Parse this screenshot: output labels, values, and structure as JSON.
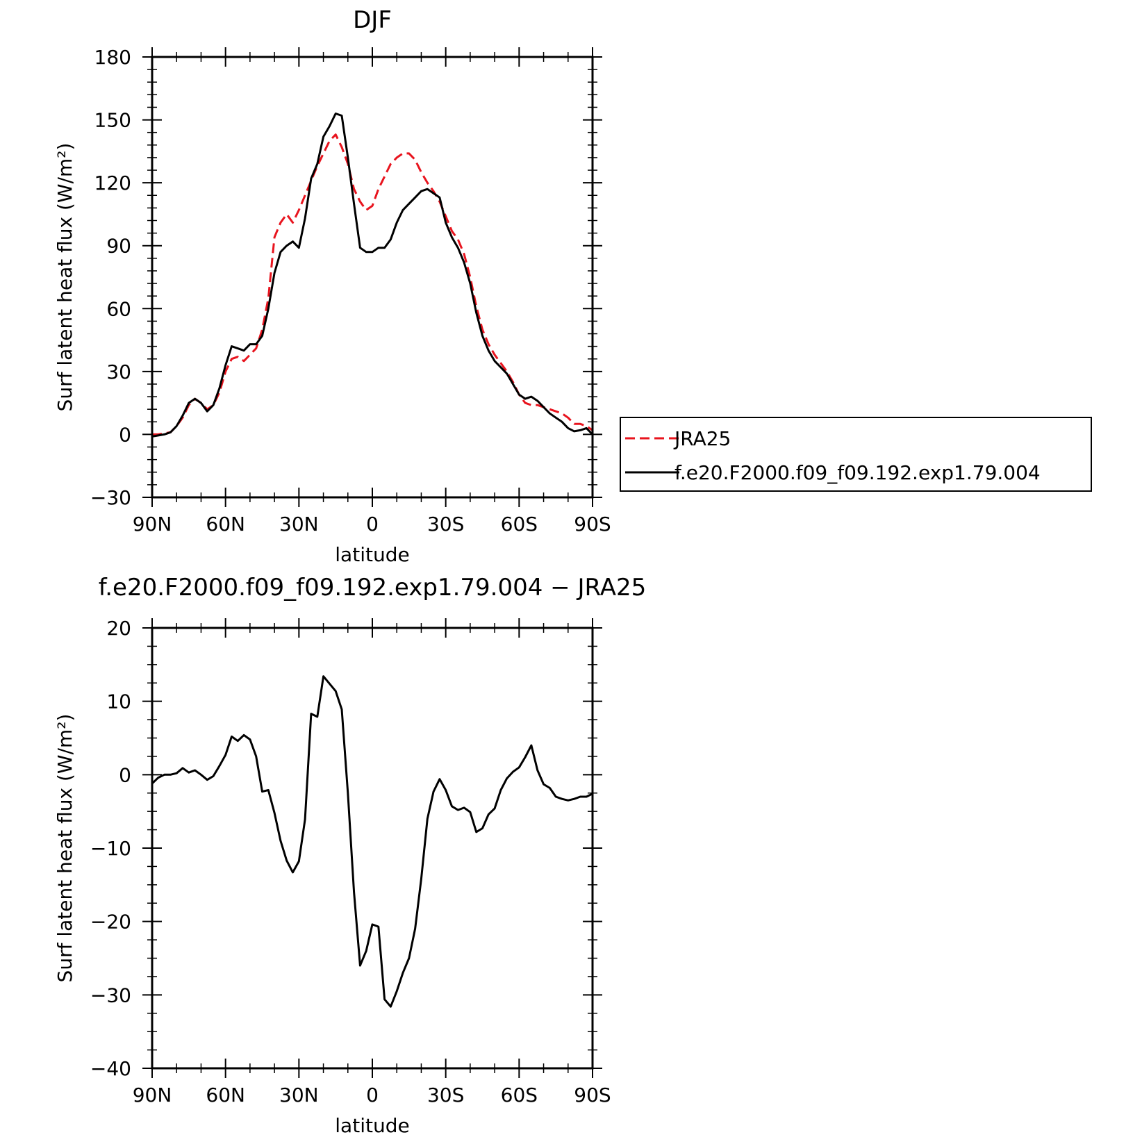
{
  "chart_data": [
    {
      "type": "line",
      "title": "DJF",
      "xlabel": "latitude",
      "ylabel": "Surf latent heat flux (W/m²)",
      "xlim": [
        90,
        -90
      ],
      "ylim": [
        -30,
        180
      ],
      "yticks": [
        -30,
        0,
        30,
        60,
        90,
        120,
        150,
        180
      ],
      "xticks": [
        90,
        60,
        30,
        0,
        -30,
        -60,
        -90
      ],
      "xtick_labels": [
        "90N",
        "60N",
        "30N",
        "0",
        "30S",
        "60S",
        "90S"
      ],
      "legend": "right",
      "series": [
        {
          "name": "JRA25",
          "color": "#e8141e",
          "style": "dashed",
          "x": [
            90,
            87.5,
            85,
            82.5,
            80,
            77.5,
            75,
            72.5,
            70,
            67.5,
            65,
            62.5,
            60,
            57.5,
            55,
            52.5,
            50,
            47.5,
            45,
            42.5,
            40,
            37.5,
            35,
            32.5,
            30,
            27.5,
            25,
            22.5,
            20,
            17.5,
            15,
            12.5,
            10,
            7.5,
            5,
            2.5,
            0,
            -2.5,
            -5,
            -7.5,
            -10,
            -12.5,
            -15,
            -17.5,
            -20,
            -22.5,
            -25,
            -27.5,
            -30,
            -32.5,
            -35,
            -37.5,
            -40,
            -42.5,
            -45,
            -47.5,
            -50,
            -52.5,
            -55,
            -57.5,
            -60,
            -62.5,
            -65,
            -67.5,
            -70,
            -72.5,
            -75,
            -77.5,
            -80,
            -82.5,
            -85,
            -87.5,
            -90
          ],
          "values": [
            0,
            0,
            0.5,
            1,
            4,
            8,
            14,
            17,
            15,
            12,
            14,
            20,
            30,
            36,
            37,
            35,
            38,
            41,
            50,
            65,
            94,
            101,
            105,
            101,
            107,
            114,
            121,
            128,
            134,
            140,
            143,
            137,
            129,
            117,
            111,
            107,
            109,
            117,
            123,
            129,
            132,
            134,
            134,
            131,
            125,
            120,
            116,
            111,
            104,
            97,
            93,
            86,
            75,
            61,
            50,
            43,
            38,
            34,
            30,
            25,
            19,
            15,
            14,
            14,
            13,
            12,
            11,
            10,
            8,
            5,
            5,
            4,
            2
          ]
        },
        {
          "name": "f.e20.F2000.f09_f09.192.exp1.79.004",
          "color": "#000000",
          "style": "solid",
          "x": [
            90,
            87.5,
            85,
            82.5,
            80,
            77.5,
            75,
            72.5,
            70,
            67.5,
            65,
            62.5,
            60,
            57.5,
            55,
            52.5,
            50,
            47.5,
            45,
            42.5,
            40,
            37.5,
            35,
            32.5,
            30,
            27.5,
            25,
            22.5,
            20,
            17.5,
            15,
            12.5,
            10,
            7.5,
            5,
            2.5,
            0,
            -2.5,
            -5,
            -7.5,
            -10,
            -12.5,
            -15,
            -17.5,
            -20,
            -22.5,
            -25,
            -27.5,
            -30,
            -32.5,
            -35,
            -37.5,
            -40,
            -42.5,
            -45,
            -47.5,
            -50,
            -52.5,
            -55,
            -57.5,
            -60,
            -62.5,
            -65,
            -67.5,
            -70,
            -72.5,
            -75,
            -77.5,
            -80,
            -82.5,
            -85,
            -87.5,
            -90
          ],
          "values": [
            -1,
            -0.5,
            0,
            1,
            4,
            9,
            15,
            17,
            15,
            11,
            14,
            22,
            33,
            42,
            41,
            40,
            43,
            43,
            47,
            60,
            77,
            87,
            90,
            92,
            89,
            103,
            122,
            129,
            142,
            147,
            153,
            152,
            132,
            110,
            89,
            87,
            87,
            89,
            89,
            93,
            101,
            107,
            110,
            113,
            116,
            117,
            115,
            113,
            101,
            94,
            89,
            82,
            72,
            58,
            47,
            40,
            35,
            32,
            29,
            24,
            19,
            17,
            18,
            16,
            13,
            10,
            8,
            6,
            3,
            1.5,
            2,
            3,
            0
          ]
        }
      ]
    },
    {
      "type": "line",
      "title": "f.e20.F2000.f09_f09.192.exp1.79.004 − JRA25",
      "xlabel": "latitude",
      "ylabel": "Surf latent heat flux (W/m²)",
      "xlim": [
        90,
        -90
      ],
      "ylim": [
        -40,
        20
      ],
      "yticks": [
        -40,
        -30,
        -20,
        -10,
        0,
        10,
        20
      ],
      "xticks": [
        90,
        60,
        30,
        0,
        -30,
        -60,
        -90
      ],
      "xtick_labels": [
        "90N",
        "60N",
        "30N",
        "0",
        "30S",
        "60S",
        "90S"
      ],
      "series": [
        {
          "color": "#000000",
          "style": "solid",
          "x": [
            90,
            87.5,
            85,
            82.5,
            80,
            77.5,
            75,
            72.5,
            70,
            67.5,
            65,
            62.5,
            60,
            57.5,
            55,
            52.5,
            50,
            47.5,
            45,
            42.5,
            40,
            37.5,
            35,
            32.5,
            30,
            27.5,
            25,
            22.5,
            20,
            17.5,
            15,
            12.5,
            10,
            7.5,
            5,
            2.5,
            0,
            -2.5,
            -5,
            -7.5,
            -10,
            -12.5,
            -15,
            -17.5,
            -20,
            -22.5,
            -25,
            -27.5,
            -30,
            -32.5,
            -35,
            -37.5,
            -40,
            -42.5,
            -45,
            -47.5,
            -50,
            -52.5,
            -55,
            -57.5,
            -60,
            -62.5,
            -65,
            -67.5,
            -70,
            -72.5,
            -75,
            -77.5,
            -80,
            -82.5,
            -85,
            -87.5,
            -90
          ],
          "values": [
            -1.2,
            -0.4,
            0,
            0,
            0.2,
            0.9,
            0.3,
            0.6,
            0,
            -0.7,
            -0.2,
            1.2,
            2.7,
            5.2,
            4.6,
            5.4,
            4.8,
            2.5,
            -2.3,
            -2.1,
            -5.2,
            -9,
            -11.7,
            -13.3,
            -11.8,
            -6.1,
            8.3,
            7.9,
            13.4,
            12.4,
            11.4,
            8.9,
            -2.5,
            -16,
            -26,
            -24,
            -20.4,
            -20.7,
            -30.6,
            -31.6,
            -29.5,
            -27,
            -25,
            -21,
            -14.2,
            -6,
            -2.3,
            -0.6,
            -2.1,
            -4.3,
            -4.8,
            -4.5,
            -5.1,
            -7.8,
            -7.3,
            -5.4,
            -4.6,
            -2.1,
            -0.5,
            0.4,
            1,
            2.4,
            4,
            0.6,
            -1.3,
            -1.8,
            -3,
            -3.3,
            -3.5,
            -3.3,
            -3,
            -3,
            -2.6
          ]
        }
      ]
    }
  ]
}
